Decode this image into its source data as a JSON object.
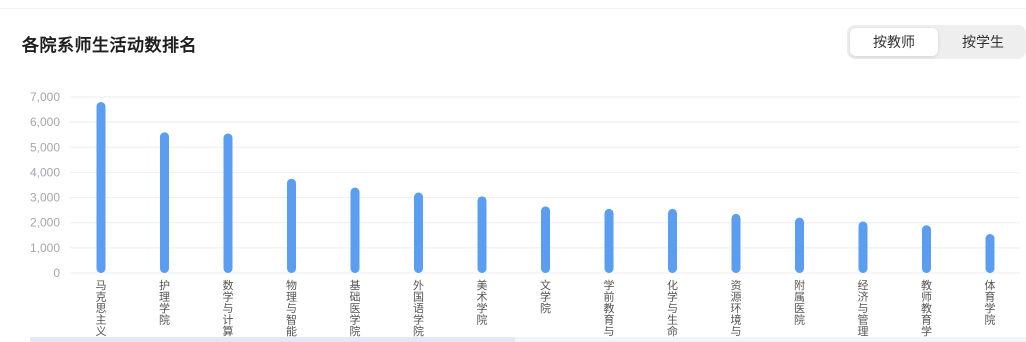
{
  "header": {
    "title": "各院系师生活动数排名"
  },
  "toggle": {
    "options": [
      "按教师",
      "按学生"
    ],
    "selected": "按教师"
  },
  "colors": {
    "bar": "#5b9df0",
    "grid": "#eeeef3",
    "tick": "#a6a6ad",
    "label": "#555555"
  },
  "chart_data": {
    "type": "bar",
    "title": "各院系师生活动数排名",
    "xlabel": "",
    "ylabel": "",
    "ylim": [
      0,
      7000
    ],
    "yticks": [
      0,
      1000,
      2000,
      3000,
      4000,
      5000,
      6000,
      7000
    ],
    "ytick_labels": [
      "0",
      "1,000",
      "2,000",
      "3,000",
      "4,000",
      "5,000",
      "6,000",
      "7,000"
    ],
    "grid": true,
    "legend": "none",
    "categories": [
      "马克思主义",
      "护理学院",
      "数学与计算",
      "物理与智能",
      "基础医学院",
      "外国语学院",
      "美术学院",
      "文学院",
      "学前教育与",
      "化学与生命",
      "资源环境与",
      "附属医院",
      "经济与管理",
      "教师教育学",
      "体育学院"
    ],
    "values": [
      6800,
      5600,
      5550,
      3750,
      3400,
      3200,
      3050,
      2650,
      2550,
      2550,
      2350,
      2200,
      2050,
      1900,
      1550
    ]
  }
}
